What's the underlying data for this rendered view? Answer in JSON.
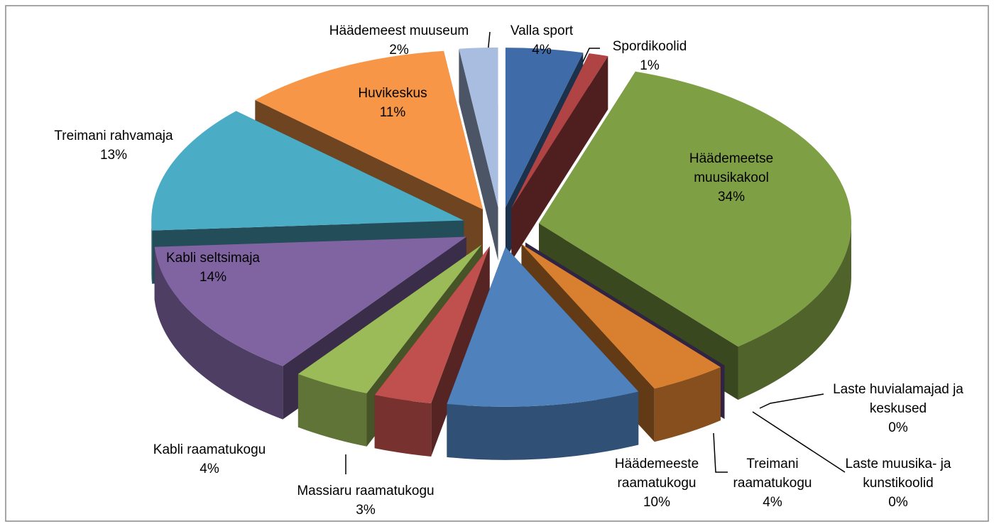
{
  "chart_data": {
    "type": "pie3d",
    "categories": [
      "Valla sport",
      "Spordikoolid",
      "Häädemeetse muusikakool",
      "Laste muusika- ja kunstikoolid",
      "Laste huvialamajad ja keskused",
      "Treimani raamatukogu",
      "Häädemeeste raamatukogu",
      "Massiaru raamatukogu",
      "Kabli raamatukogu",
      "Kabli seltsimaja",
      "Treimani rahvamaja",
      "Huvikeskus",
      "Häädemeest muuseum"
    ],
    "values": [
      4,
      1,
      34,
      0,
      0,
      4,
      10,
      3,
      4,
      14,
      13,
      11,
      2
    ],
    "value_labels": [
      "4%",
      "1%",
      "34%",
      "0%",
      "0%",
      "4%",
      "10%",
      "3%",
      "4%",
      "14%",
      "13%",
      "11%",
      "2%"
    ],
    "colors": [
      "#3f6ca8",
      "#b04444",
      "#7f9f45",
      "#1f5a6a",
      "#6a4d98",
      "#d98030",
      "#4f81bd",
      "#c0504d",
      "#9bbb59",
      "#8064a2",
      "#4bacc6",
      "#f79646",
      "#a9bde0"
    ]
  }
}
